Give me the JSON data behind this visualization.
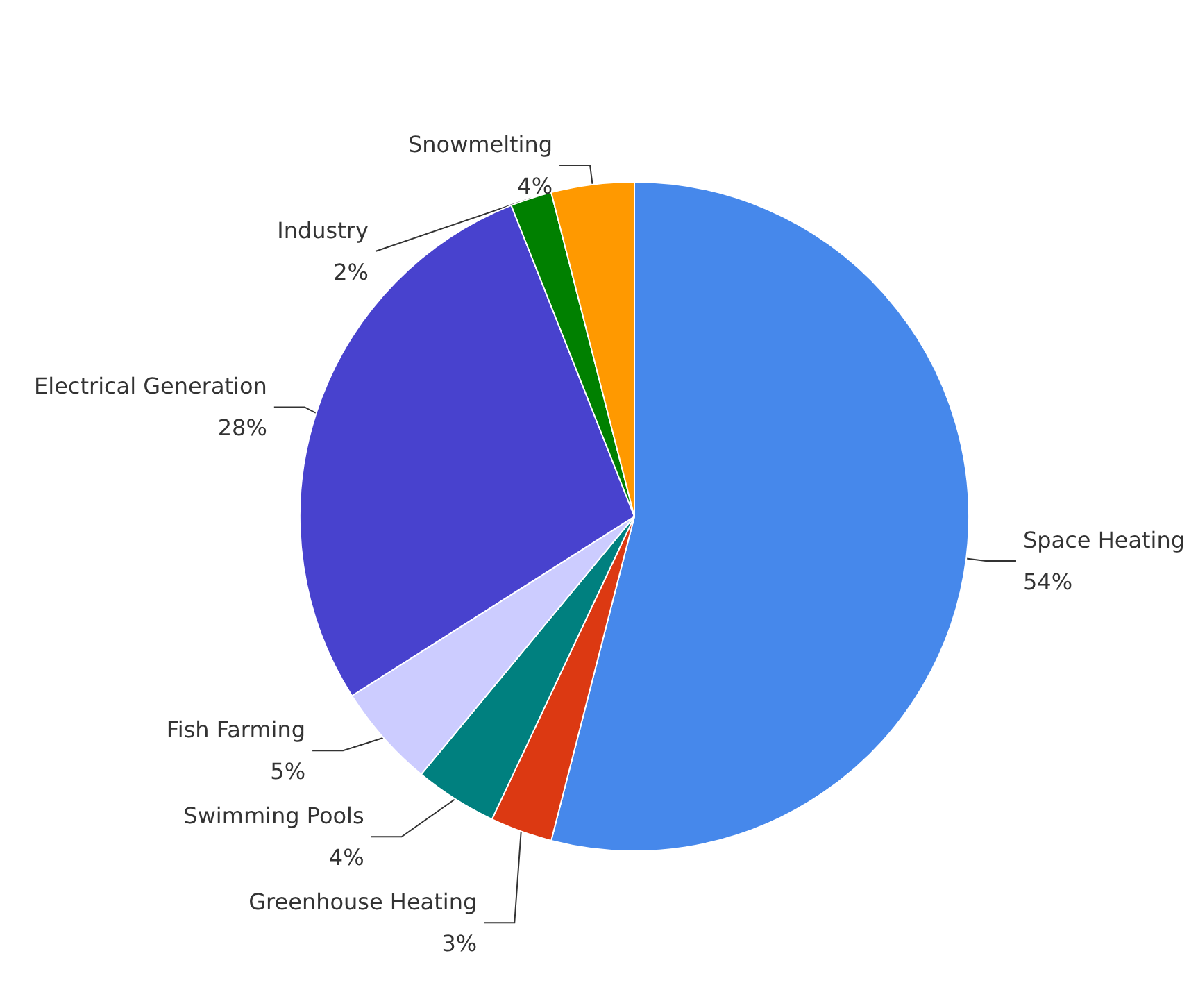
{
  "chart_data": {
    "type": "pie",
    "categories": [
      "Space Heating",
      "Greenhouse Heating",
      "Swimming Pools",
      "Fish Farming",
      "Electrical Generation",
      "Industry",
      "Snowmelting"
    ],
    "values": [
      54,
      3,
      4,
      5,
      28,
      2,
      4
    ],
    "value_labels": [
      "54%",
      "3%",
      "4%",
      "5%",
      "28%",
      "2%",
      "4%"
    ],
    "colors": [
      "#4688eb",
      "#dc3912",
      "#00807f",
      "#ccccff",
      "#4842ce",
      "#008000",
      "#ff9900"
    ],
    "legend": false
  }
}
